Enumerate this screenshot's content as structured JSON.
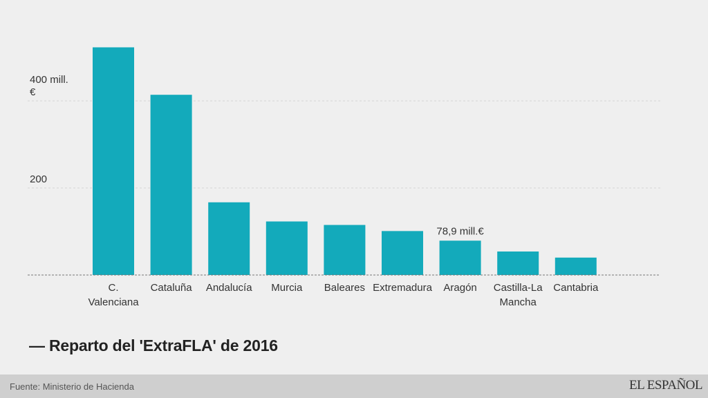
{
  "chart_data": {
    "type": "bar",
    "categories": [
      [
        "C.",
        "Valenciana"
      ],
      [
        "Cataluña"
      ],
      [
        "Andalucía"
      ],
      [
        "Murcia"
      ],
      [
        "Baleares"
      ],
      [
        "Extremadura"
      ],
      [
        "Aragón"
      ],
      [
        "Castilla-La",
        "Mancha"
      ],
      [
        "Cantabria"
      ]
    ],
    "values": [
      523,
      414,
      167,
      123,
      115,
      101,
      78.9,
      54,
      40
    ],
    "title": "— Reparto del 'ExtraFLA' de 2016",
    "y_ticks": [
      {
        "value": 400,
        "lines": [
          "400 mill.",
          "€"
        ]
      },
      {
        "value": 200,
        "lines": [
          "200"
        ]
      }
    ],
    "annotations": [
      {
        "category_index": 6,
        "text": "78,9 mill.€"
      }
    ],
    "ylim": [
      0,
      560
    ],
    "grid": true,
    "colors": {
      "bar": "#13aabb",
      "grid": "#d6d6d6",
      "baseline": "#777777"
    }
  },
  "footer": {
    "source": "Fuente: Ministerio de Hacienda",
    "brand": "EL ESPAÑOL"
  }
}
